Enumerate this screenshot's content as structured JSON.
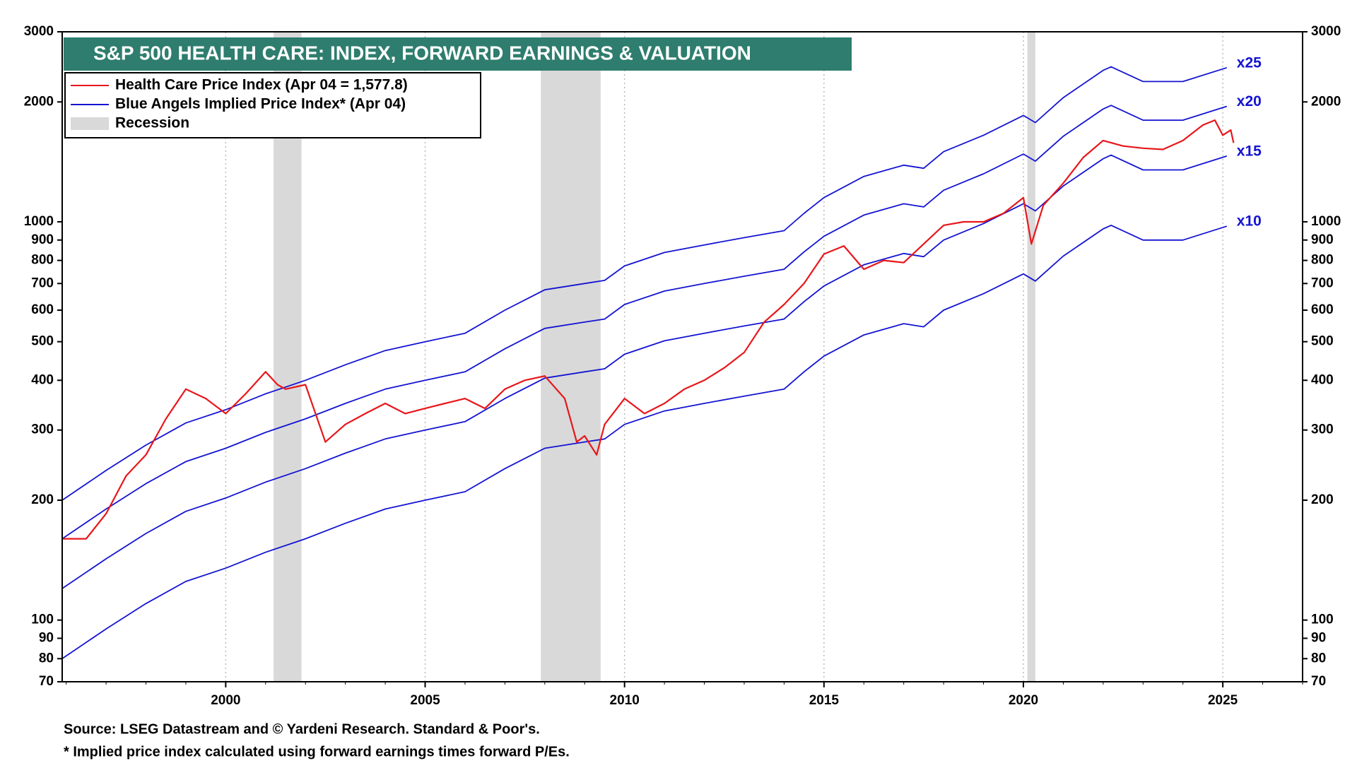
{
  "chart_data": {
    "type": "line",
    "title": "S&P 500 HEALTH CARE: INDEX, FORWARD EARNINGS & VALUATION",
    "log_scale": true,
    "grid": "x",
    "legend_position": "top-left",
    "legend": [
      {
        "label": "Health Care Price Index (Apr 04 = 1,577.8)",
        "color": "#e8161b",
        "kind": "line"
      },
      {
        "label": "Blue Angels Implied Price Index* (Apr 04)",
        "color": "#1414d2",
        "kind": "line"
      },
      {
        "label": "Recession",
        "color": "#d9d9d9",
        "kind": "band"
      }
    ],
    "recessions": [
      [
        2001.2,
        2001.9
      ],
      [
        2007.9,
        2009.4
      ],
      [
        2020.1,
        2020.3
      ]
    ],
    "recession_color": "#d9d9d9",
    "xlim": [
      1995.9,
      2027.0
    ],
    "xticks": [
      2000,
      2005,
      2010,
      2015,
      2020,
      2025
    ],
    "ylim": [
      70,
      3000
    ],
    "yticks": [
      70,
      80,
      90,
      100,
      200,
      300,
      400,
      500,
      600,
      700,
      800,
      900,
      1000,
      2000,
      3000
    ],
    "series": [
      {
        "name": "Health Care Price Index",
        "color": "#e8161b",
        "label_end": false,
        "x": [
          1995.9,
          1996.5,
          1997,
          1997.5,
          1998,
          1998.5,
          1999,
          1999.5,
          2000,
          2000.5,
          2001,
          2001.3,
          2001.5,
          2002,
          2002.5,
          2003,
          2003.5,
          2004,
          2004.5,
          2005,
          2005.5,
          2006,
          2006.5,
          2007,
          2007.5,
          2008,
          2008.5,
          2008.8,
          2009,
          2009.3,
          2009.5,
          2010,
          2010.5,
          2011,
          2011.5,
          2012,
          2012.5,
          2013,
          2013.5,
          2014,
          2014.5,
          2015,
          2015.5,
          2016,
          2016.5,
          2017,
          2017.5,
          2018,
          2018.5,
          2019,
          2019.5,
          2020,
          2020.2,
          2020.5,
          2021,
          2021.5,
          2022,
          2022.5,
          2023,
          2023.5,
          2024,
          2024.5,
          2024.8,
          2025,
          2025.2,
          2025.27
        ],
        "values": [
          160,
          160,
          185,
          230,
          260,
          320,
          380,
          360,
          330,
          370,
          420,
          390,
          380,
          390,
          280,
          310,
          330,
          350,
          330,
          340,
          350,
          360,
          340,
          380,
          400,
          410,
          360,
          280,
          290,
          260,
          310,
          360,
          330,
          350,
          380,
          400,
          430,
          470,
          560,
          620,
          700,
          830,
          870,
          760,
          800,
          790,
          880,
          980,
          1000,
          1000,
          1050,
          1150,
          880,
          1100,
          1250,
          1450,
          1600,
          1550,
          1530,
          1520,
          1600,
          1750,
          1800,
          1650,
          1700,
          1577.8
        ]
      },
      {
        "name": "x25",
        "color": "#1414d2",
        "label_end": true,
        "x": [
          1995.9,
          1997,
          1998,
          1999,
          2000,
          2001,
          2002,
          2003,
          2004,
          2005,
          2006,
          2007,
          2008,
          2009,
          2009.5,
          2010,
          2011,
          2012,
          2013,
          2014,
          2014.5,
          2015,
          2016,
          2017,
          2017.5,
          2018,
          2019,
          2020,
          2020.3,
          2021,
          2022,
          2022.2,
          2023,
          2024,
          2025.1
        ],
        "values": [
          200,
          237.5,
          275,
          312.5,
          337.5,
          370,
          400,
          437.5,
          475,
          500,
          525,
          600,
          675,
          700,
          712.5,
          775,
          837.5,
          875,
          912.5,
          950,
          1050,
          1150,
          1300,
          1387.5,
          1362.5,
          1500,
          1650,
          1850,
          1775,
          2050,
          2400,
          2450,
          2250,
          2250,
          2437.5
        ]
      },
      {
        "name": "x20",
        "color": "#1414d2",
        "label_end": true,
        "x": [
          1995.9,
          1997,
          1998,
          1999,
          2000,
          2001,
          2002,
          2003,
          2004,
          2005,
          2006,
          2007,
          2008,
          2009,
          2009.5,
          2010,
          2011,
          2012,
          2013,
          2014,
          2014.5,
          2015,
          2016,
          2017,
          2017.5,
          2018,
          2019,
          2020,
          2020.3,
          2021,
          2022,
          2022.2,
          2023,
          2024,
          2025.1
        ],
        "values": [
          160,
          190,
          220,
          250,
          270,
          296,
          320,
          350,
          380,
          400,
          420,
          480,
          540,
          560,
          570,
          620,
          670,
          700,
          730,
          760,
          840,
          920,
          1040,
          1110,
          1090,
          1200,
          1320,
          1480,
          1420,
          1640,
          1920,
          1960,
          1800,
          1800,
          1950
        ]
      },
      {
        "name": "x15",
        "color": "#1414d2",
        "label_end": true,
        "x": [
          1995.9,
          1997,
          1998,
          1999,
          2000,
          2001,
          2002,
          2003,
          2004,
          2005,
          2006,
          2007,
          2008,
          2009,
          2009.5,
          2010,
          2011,
          2012,
          2013,
          2014,
          2014.5,
          2015,
          2016,
          2017,
          2017.5,
          2018,
          2019,
          2020,
          2020.3,
          2021,
          2022,
          2022.2,
          2023,
          2024,
          2025.1
        ],
        "values": [
          120,
          142.5,
          165,
          187.5,
          202.5,
          222,
          240,
          262.5,
          285,
          300,
          315,
          360,
          405,
          420,
          427.5,
          465,
          502.5,
          525,
          547.5,
          570,
          630,
          690,
          780,
          832.5,
          817.5,
          900,
          990,
          1110,
          1065,
          1230,
          1440,
          1470,
          1350,
          1350,
          1462.5
        ]
      },
      {
        "name": "x10",
        "color": "#1414d2",
        "label_end": true,
        "x": [
          1995.9,
          1997,
          1998,
          1999,
          2000,
          2001,
          2002,
          2003,
          2004,
          2005,
          2006,
          2007,
          2008,
          2009,
          2009.5,
          2010,
          2011,
          2012,
          2013,
          2014,
          2014.5,
          2015,
          2016,
          2017,
          2017.5,
          2018,
          2019,
          2020,
          2020.3,
          2021,
          2022,
          2022.2,
          2023,
          2024,
          2025.1
        ],
        "values": [
          80,
          95,
          110,
          125,
          135,
          148,
          160,
          175,
          190,
          200,
          210,
          240,
          270,
          280,
          285,
          310,
          335,
          350,
          365,
          380,
          420,
          460,
          520,
          555,
          545,
          600,
          660,
          740,
          710,
          820,
          960,
          980,
          900,
          900,
          975
        ]
      }
    ],
    "notes": [
      "Source: LSEG Datastream and © Yardeni Research. Standard & Poor's.",
      "* Implied price index calculated using forward earnings times forward P/Es."
    ]
  }
}
